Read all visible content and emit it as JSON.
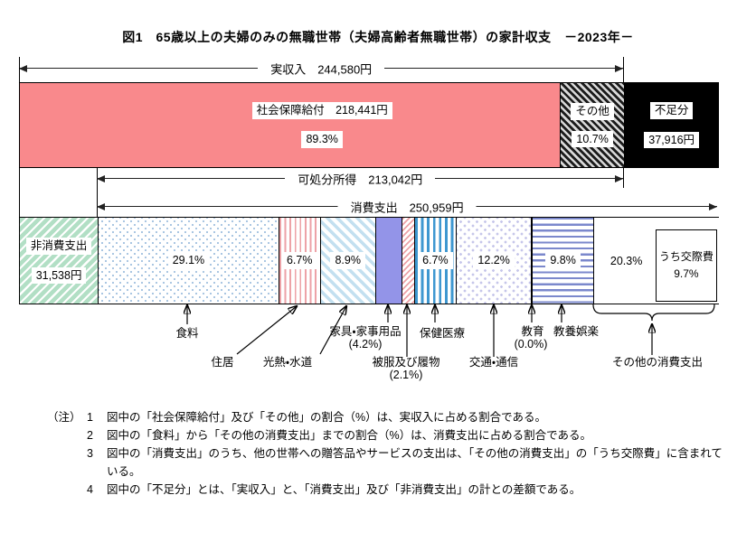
{
  "title": "図1　65歳以上の夫婦のみの無職世帯（夫婦高齢者無職世帯）の家計収支　－2023年－",
  "arrows": {
    "income": "実収入　244,580円",
    "disposable": "可処分所得　213,042円",
    "consumption": "消費支出　250,959円"
  },
  "income_bar": {
    "social_security": {
      "label": "社会保障給付　218,441円",
      "pct": "89.3%"
    },
    "other": {
      "label": "その他",
      "pct": "10.7%"
    },
    "deficit": {
      "label": "不足分",
      "amount": "37,916円"
    }
  },
  "expense_bar": {
    "non_consumption": {
      "label": "非消費支出",
      "amount": "31,538円"
    }
  },
  "below_labels": {
    "food": "食料",
    "housing": "住居",
    "fuel": "光熱・水道",
    "furniture": "家具・家事用品",
    "clothing": "被服及び履物",
    "medical": "保健医療",
    "transport": "交通・通信",
    "education": "教育",
    "recreation": "教養娯楽",
    "other": "その他の消費支出"
  },
  "notes": {
    "mark": "（注）",
    "items": [
      {
        "num": "1",
        "text": "図中の「社会保障給付」及び「その他」の割合（%）は、実収入に占める割合である。"
      },
      {
        "num": "2",
        "text": "図中の「食料」から「その他の消費支出」までの割合（%）は、消費支出に占める割合である。"
      },
      {
        "num": "3",
        "text": "図中の「消費支出」のうち、他の世帯への贈答品やサービスの支出は、「その他の消費支出」の「うち交際費」に含まれている。"
      },
      {
        "num": "4",
        "text": "図中の「不足分」とは、「実収入」と、「消費支出」及び「非消費支出」の計との差額である。"
      }
    ]
  },
  "chart_data": {
    "type": "bar",
    "title": "65歳以上の夫婦のみの無職世帯（夫婦高齢者無職世帯）の家計収支 －2023年－",
    "unit": "円",
    "income": {
      "total": 244580,
      "social_security": {
        "amount": 218441,
        "pct_of_income": 89.3
      },
      "other": {
        "pct_of_income": 10.7
      },
      "deficit": 37916
    },
    "disposable_income": 213042,
    "non_consumption": 31538,
    "consumption": {
      "total": 250959,
      "breakdown": [
        {
          "name": "食料",
          "pct": 29.1,
          "pct_label": "29.1%"
        },
        {
          "name": "住居",
          "pct": 6.7,
          "pct_label": "6.7%"
        },
        {
          "name": "光熱・水道",
          "pct": 8.9,
          "pct_label": "8.9%"
        },
        {
          "name": "家具・家事用品",
          "pct": 4.2,
          "pct_label": "(4.2%)"
        },
        {
          "name": "被服及び履物",
          "pct": 2.1,
          "pct_label": "(2.1%)"
        },
        {
          "name": "保健医療",
          "pct": 6.7,
          "pct_label": "6.7%"
        },
        {
          "name": "交通・通信",
          "pct": 12.2,
          "pct_label": "12.2%"
        },
        {
          "name": "教育",
          "pct": 0.0,
          "pct_label": "(0.0%)"
        },
        {
          "name": "教養娯楽",
          "pct": 9.8,
          "pct_label": "9.8%"
        },
        {
          "name": "その他の消費支出",
          "pct": 20.3,
          "pct_label": "20.3%"
        }
      ],
      "of_which": {
        "name": "うち交際費",
        "pct": 9.7,
        "pct_label": "9.7%"
      }
    }
  }
}
